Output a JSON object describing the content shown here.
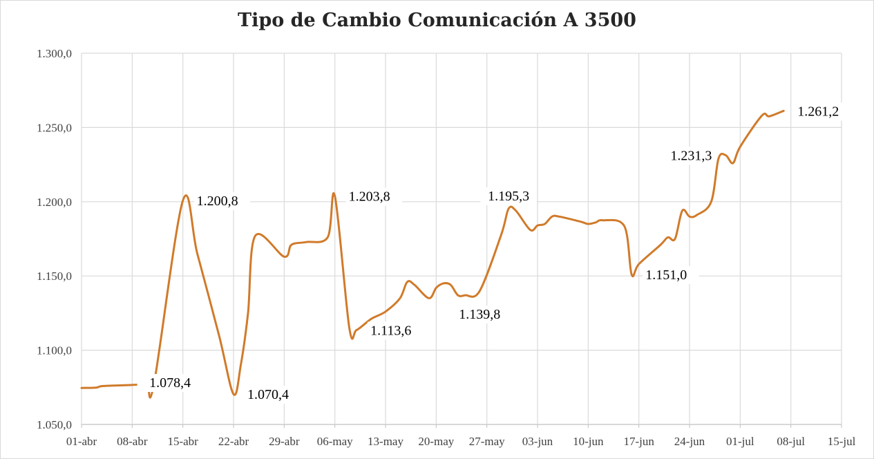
{
  "chart_data": {
    "type": "line",
    "title": "Tipo de Cambio Comunicación A 3500",
    "xlabel": "",
    "ylabel": "",
    "ylim": [
      1050,
      1300
    ],
    "yticks": [
      "1.050,0",
      "1.100,0",
      "1.150,0",
      "1.200,0",
      "1.250,0",
      "1.300,0"
    ],
    "ytick_values": [
      1050,
      1100,
      1150,
      1200,
      1250,
      1300
    ],
    "xticks": [
      "01-abr",
      "08-abr",
      "15-abr",
      "22-abr",
      "29-abr",
      "06-may",
      "13-may",
      "20-may",
      "27-may",
      "03-jun",
      "10-jun",
      "17-jun",
      "24-jun",
      "01-jul",
      "08-jul",
      "15-jul"
    ],
    "grid": true,
    "legend": "none",
    "series": [
      {
        "color": "#d07a2a",
        "points": [
          [
            0,
            1074.6
          ],
          [
            2,
            1074.8
          ],
          [
            3,
            1075.9
          ],
          [
            7,
            1076.6
          ],
          [
            9,
            1077.3
          ],
          [
            10,
            1077.2
          ],
          [
            14,
            1200.8
          ],
          [
            16,
            1165.0
          ],
          [
            19,
            1110.0
          ],
          [
            21,
            1070.4
          ],
          [
            22,
            1090.0
          ],
          [
            23,
            1125.0
          ],
          [
            24,
            1177.0
          ],
          [
            28,
            1163.0
          ],
          [
            29,
            1171.0
          ],
          [
            31,
            1172.8
          ],
          [
            34,
            1176.0
          ],
          [
            35,
            1203.8
          ],
          [
            37,
            1115.0
          ],
          [
            38,
            1113.6
          ],
          [
            40,
            1121.0
          ],
          [
            42,
            1126.0
          ],
          [
            44,
            1135.0
          ],
          [
            45,
            1146.0
          ],
          [
            46,
            1144.0
          ],
          [
            48,
            1135.0
          ],
          [
            49,
            1142.0
          ],
          [
            50,
            1145.0
          ],
          [
            51,
            1144.0
          ],
          [
            52,
            1137.0
          ],
          [
            53,
            1137.0
          ],
          [
            55,
            1139.8
          ],
          [
            58,
            1178.0
          ],
          [
            59,
            1195.3
          ],
          [
            60,
            1194.0
          ],
          [
            62,
            1181.0
          ],
          [
            63,
            1184.0
          ],
          [
            64,
            1185.0
          ],
          [
            65,
            1190.0
          ],
          [
            66,
            1190.0
          ],
          [
            69,
            1186.5
          ],
          [
            70,
            1185.0
          ],
          [
            71,
            1186.0
          ],
          [
            72,
            1187.5
          ],
          [
            75,
            1183.5
          ],
          [
            76,
            1151.0
          ],
          [
            77,
            1158.0
          ],
          [
            80,
            1171.0
          ],
          [
            81,
            1176.0
          ],
          [
            82,
            1175.0
          ],
          [
            83,
            1194.0
          ],
          [
            84,
            1190.0
          ],
          [
            85,
            1191.0
          ],
          [
            87,
            1200.0
          ],
          [
            88,
            1229.0
          ],
          [
            89,
            1231.3
          ],
          [
            90,
            1226.0
          ],
          [
            91,
            1237.0
          ],
          [
            94,
            1258.0
          ],
          [
            95,
            1257.5
          ],
          [
            97,
            1261.2
          ]
        ]
      }
    ],
    "data_labels": [
      {
        "text": "1.200,8",
        "x": 14,
        "y": 1200.8,
        "side": "right"
      },
      {
        "text": "1.078,4",
        "x": 17,
        "y": 1078.4,
        "side": "left"
      },
      {
        "text": "1.070,4",
        "x": 21,
        "y": 1070.4,
        "side": "right"
      },
      {
        "text": "1.203,8",
        "x": 35,
        "y": 1203.8,
        "side": "right"
      },
      {
        "text": "1.113,6",
        "x": 38,
        "y": 1113.6,
        "side": "right"
      },
      {
        "text": "1.195,3",
        "x": 59,
        "y": 1195.3,
        "side": "above"
      },
      {
        "text": "1.139,8",
        "x": 55,
        "y": 1139.8,
        "side": "below"
      },
      {
        "text": "1.151,0",
        "x": 76,
        "y": 1151.0,
        "side": "right"
      },
      {
        "text": "1.231,3",
        "x": 89,
        "y": 1231.3,
        "side": "left"
      },
      {
        "text": "1.261,2",
        "x": 97,
        "y": 1261.2,
        "side": "right"
      }
    ]
  }
}
